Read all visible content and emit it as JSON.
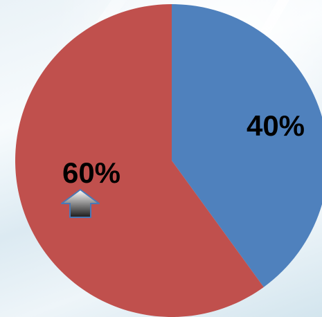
{
  "chart_data": {
    "type": "pie",
    "title": "",
    "slices": [
      {
        "value": 40,
        "label": "40%",
        "color": "#4F81BD"
      },
      {
        "value": 60,
        "label": "60%",
        "color": "#C0504D"
      }
    ],
    "start_angle_deg": 0,
    "direction": "clockwise",
    "legend": "none"
  },
  "decorations": {
    "arrow_icon": "up-arrow-icon",
    "background": "light-blue-abstract"
  }
}
